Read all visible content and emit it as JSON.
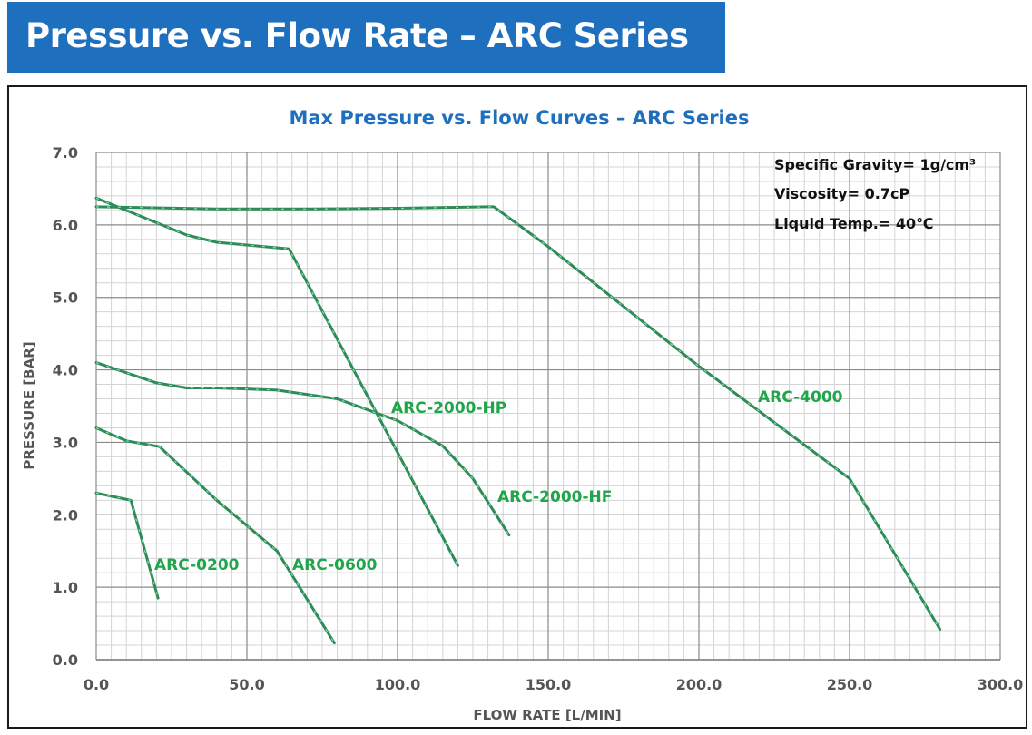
{
  "page": {
    "banner_title": "Pressure vs. Flow Rate – ARC Series"
  },
  "chart_data": {
    "type": "line",
    "title": "Max Pressure vs. Flow Curves – ARC Series",
    "xlabel": "FLOW RATE [L/MIN]",
    "ylabel": "PRESSURE [BAR]",
    "xlim": [
      0,
      300
    ],
    "ylim": [
      0,
      7
    ],
    "x_ticks": [
      "0.0",
      "50.0",
      "100.0",
      "150.0",
      "200.0",
      "250.0",
      "300.0"
    ],
    "y_ticks": [
      "0.0",
      "1.0",
      "2.0",
      "3.0",
      "4.0",
      "5.0",
      "6.0",
      "7.0"
    ],
    "grid": true,
    "annotations": [
      "Specific Gravity= 1g/cm³",
      "Viscosity= 0.7cP",
      "Liquid Temp.= 40℃"
    ],
    "line_color": "#2e8b57",
    "label_color": "#1fa64a",
    "title_color": "#1e6fbe",
    "series": [
      {
        "name": "ARC-0200",
        "x": [
          0,
          11.5,
          20.5
        ],
        "y": [
          2.3,
          2.2,
          0.85
        ]
      },
      {
        "name": "ARC-0600",
        "x": [
          0,
          10,
          21,
          40,
          60,
          79
        ],
        "y": [
          3.2,
          3.02,
          2.94,
          2.2,
          1.5,
          0.23
        ]
      },
      {
        "name": "ARC-2000-HP",
        "x": [
          0,
          30,
          40,
          64,
          120
        ],
        "y": [
          6.37,
          5.86,
          5.76,
          5.67,
          1.3
        ]
      },
      {
        "name": "ARC-2000-HF",
        "x": [
          0,
          20,
          30,
          40,
          60,
          80,
          100,
          115,
          125,
          137
        ],
        "y": [
          4.1,
          3.82,
          3.75,
          3.75,
          3.72,
          3.6,
          3.3,
          2.95,
          2.5,
          1.72
        ]
      },
      {
        "name": "ARC-4000",
        "x": [
          0,
          15,
          40,
          70,
          100,
          130,
          132,
          150,
          200,
          250,
          280
        ],
        "y": [
          6.25,
          6.24,
          6.22,
          6.22,
          6.23,
          6.25,
          6.25,
          5.7,
          4.05,
          2.5,
          0.42
        ]
      }
    ]
  }
}
